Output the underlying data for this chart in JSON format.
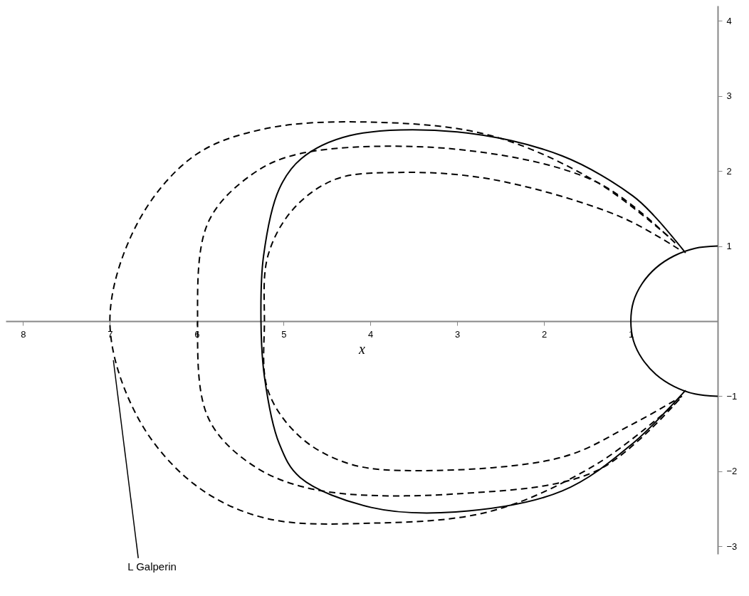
{
  "chart_data": {
    "type": "line",
    "xlabel": "x",
    "xlim": [
      8.2,
      0
    ],
    "ylim": [
      -3.1,
      4.2
    ],
    "xticks": [
      8,
      7,
      6,
      5,
      4,
      3,
      2,
      1
    ],
    "yticks": [
      -3,
      -2,
      -1,
      1,
      2,
      3,
      4
    ],
    "grid": false,
    "series": [
      {
        "color": "#000000",
        "line_style": "solid",
        "x": [
          0.37,
          0.73,
          0.98,
          1.79,
          3.0,
          4.24,
          4.8,
          5.05,
          5.23,
          5.26,
          5.22,
          5.05,
          4.81,
          3.99,
          3.02,
          1.79,
          0.98,
          0.37
        ],
        "values": [
          0.91,
          1.4,
          1.67,
          2.2,
          2.52,
          2.47,
          2.16,
          1.76,
          0.87,
          0,
          -0.74,
          -1.63,
          -2.08,
          -2.48,
          -2.54,
          -2.26,
          -1.63,
          -0.92
        ]
      },
      {
        "color": "#000000",
        "line_style": "dashed",
        "x": [
          0.57,
          1.39,
          2.61,
          4.0,
          5.22,
          6.03,
          6.68,
          7.0,
          6.68,
          6.03,
          5.22,
          4.0,
          2.61,
          1.39,
          0.49
        ],
        "values": [
          1.13,
          1.85,
          2.47,
          2.65,
          2.56,
          2.2,
          1.31,
          0,
          -1.28,
          -2.17,
          -2.62,
          -2.69,
          -2.53,
          -1.9,
          -1.1
        ]
      },
      {
        "color": "#000000",
        "line_style": "dashed",
        "x": [
          0.49,
          1.39,
          3.02,
          4.81,
          5.38,
          5.87,
          5.99,
          5.87,
          5.38,
          4.65,
          3.02,
          1.39,
          0.41
        ],
        "values": [
          1.04,
          1.85,
          2.29,
          2.23,
          1.94,
          1.31,
          0,
          -1.28,
          -1.9,
          -2.24,
          -2.3,
          -1.99,
          -1.0
        ]
      },
      {
        "color": "#000000",
        "line_style": "dashed",
        "x": [
          0.45,
          1.14,
          2.61,
          3.67,
          4.4,
          4.89,
          5.18,
          5.22,
          5.18,
          4.81,
          4.24,
          3.42,
          1.79,
          0.98,
          0.41
        ],
        "values": [
          0.96,
          1.4,
          1.89,
          1.98,
          1.89,
          1.49,
          0.87,
          0,
          -0.92,
          -1.54,
          -1.9,
          -1.99,
          -1.81,
          -1.37,
          -1.0
        ]
      },
      {
        "color": "#000000",
        "line_style": "solid",
        "x": [
          0,
          0.26,
          0.5,
          0.71,
          0.87,
          0.97,
          1,
          0.97,
          0.87,
          0.71,
          0.5,
          0.26,
          0
        ],
        "values": [
          1,
          0.97,
          0.87,
          0.71,
          0.5,
          0.26,
          0,
          -0.26,
          -0.5,
          -0.71,
          -0.87,
          -0.97,
          -1
        ]
      }
    ],
    "annotations": [
      {
        "text": "L Galperin",
        "x": 6.96,
        "y": -0.52
      }
    ]
  }
}
